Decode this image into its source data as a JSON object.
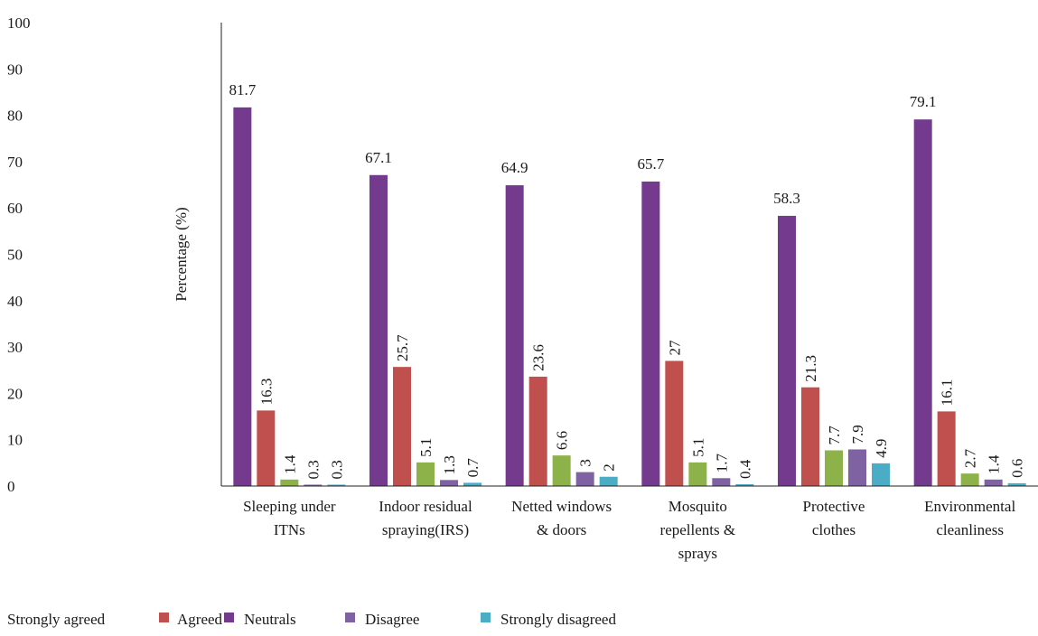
{
  "chart_data": {
    "type": "bar",
    "title": "",
    "xlabel": "",
    "ylabel": "Percentage (%)",
    "ylim": [
      0,
      100
    ],
    "yticks": [
      0,
      10,
      20,
      30,
      40,
      50,
      60,
      70,
      80,
      90,
      100
    ],
    "grid": false,
    "legend_position": "bottom",
    "categories": [
      [
        "Sleeping under",
        "ITNs"
      ],
      [
        "Indoor residual",
        "spraying(IRS)"
      ],
      [
        "Netted windows",
        "& doors"
      ],
      [
        "Mosquito",
        "repellents &",
        "sprays"
      ],
      [
        "Protective",
        "clothes"
      ],
      [
        "Environmental",
        "cleanliness"
      ]
    ],
    "series": [
      {
        "name": "Strongly agreed",
        "color": "#733a8e",
        "values": [
          81.7,
          67.1,
          64.9,
          65.7,
          58.3,
          79.1
        ]
      },
      {
        "name": "Agreed",
        "color": "#c0504d",
        "values": [
          16.3,
          25.7,
          23.6,
          27,
          21.3,
          16.1
        ]
      },
      {
        "name": "Neutrals",
        "color": "#8db24a",
        "values": [
          1.4,
          5.1,
          6.6,
          5.1,
          7.7,
          2.7
        ]
      },
      {
        "name": "Disagree",
        "color": "#7e62a1",
        "values": [
          0.3,
          1.3,
          3,
          1.7,
          7.9,
          1.4
        ]
      },
      {
        "name": "Strongly disagreed",
        "color": "#4bacc6",
        "values": [
          0.3,
          0.7,
          2,
          0.4,
          4.9,
          0.6
        ]
      }
    ]
  }
}
